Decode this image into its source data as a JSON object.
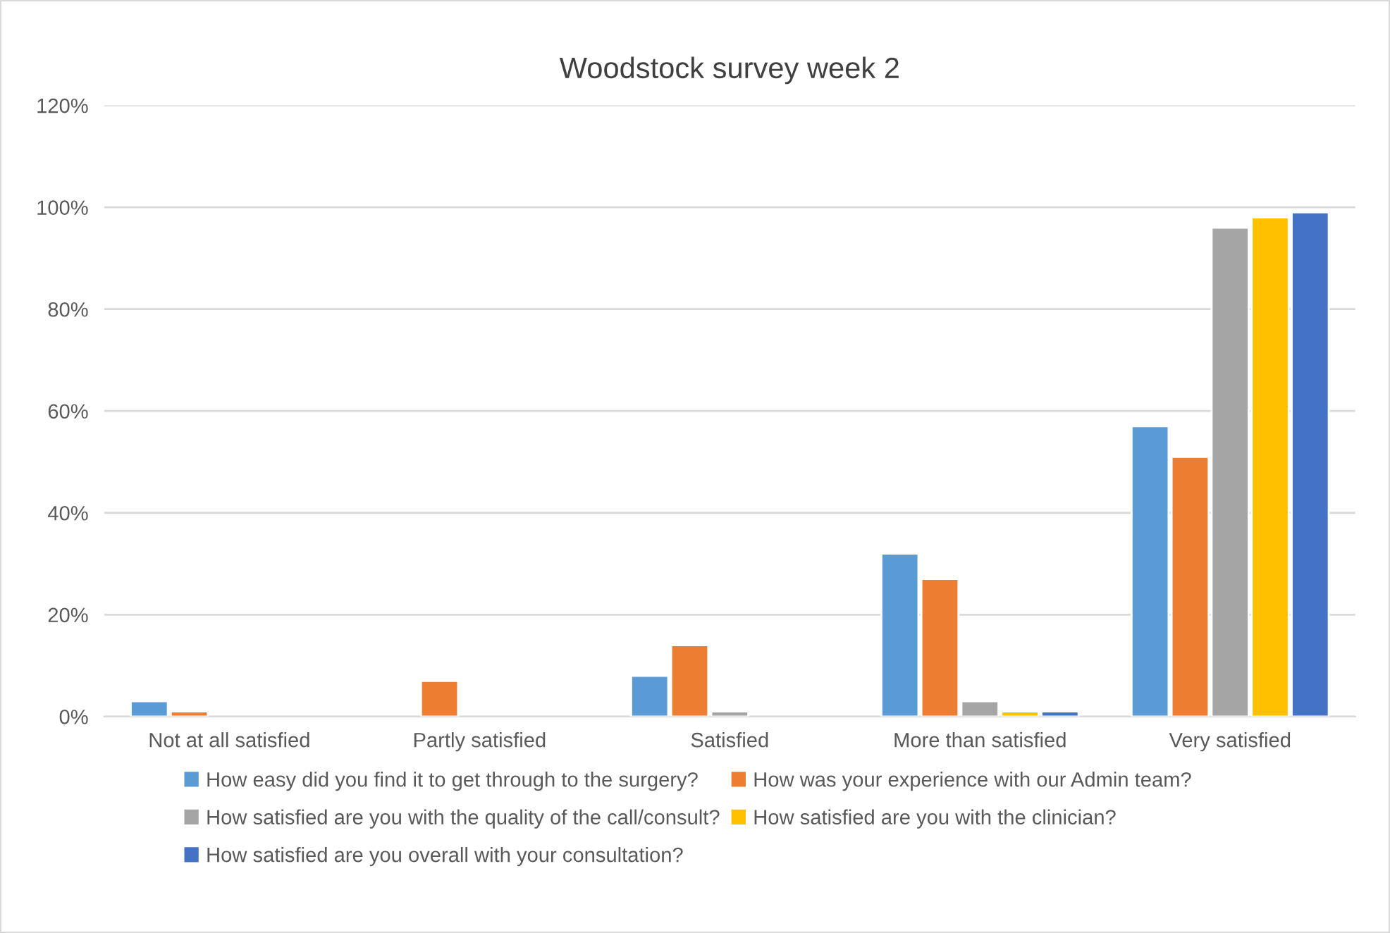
{
  "chart_data": {
    "type": "bar",
    "title": "Woodstock survey week 2",
    "categories": [
      "Not at all satisfied",
      "Partly satisfied",
      "Satisfied",
      "More than satisfied",
      "Very satisfied"
    ],
    "series": [
      {
        "name": "How easy did you find it to get through to the surgery?",
        "color": "#5b9bd5",
        "values": [
          3,
          null,
          8,
          32,
          57
        ]
      },
      {
        "name": "How was your experience with our Admin team?",
        "color": "#ed7d31",
        "values": [
          1,
          7,
          14,
          27,
          51
        ]
      },
      {
        "name": "How satisfied are you with the quality of the call/consult?",
        "color": "#a5a5a5",
        "values": [
          null,
          null,
          1,
          3,
          96
        ]
      },
      {
        "name": "How satisfied are you with the clinician?",
        "color": "#ffc000",
        "values": [
          null,
          null,
          null,
          1,
          98
        ]
      },
      {
        "name": "How satisfied are you overall with your consultation?",
        "color": "#4472c4",
        "values": [
          null,
          null,
          null,
          1,
          99
        ]
      }
    ],
    "ylim": [
      0,
      120
    ],
    "yticks": [
      {
        "value": 0,
        "label": "0%"
      },
      {
        "value": 20,
        "label": "20%"
      },
      {
        "value": 40,
        "label": "40%"
      },
      {
        "value": 60,
        "label": "60%"
      },
      {
        "value": 80,
        "label": "80%"
      },
      {
        "value": 100,
        "label": "100%"
      },
      {
        "value": 120,
        "label": "120%"
      }
    ],
    "grid": "y",
    "legend": "bottom"
  }
}
